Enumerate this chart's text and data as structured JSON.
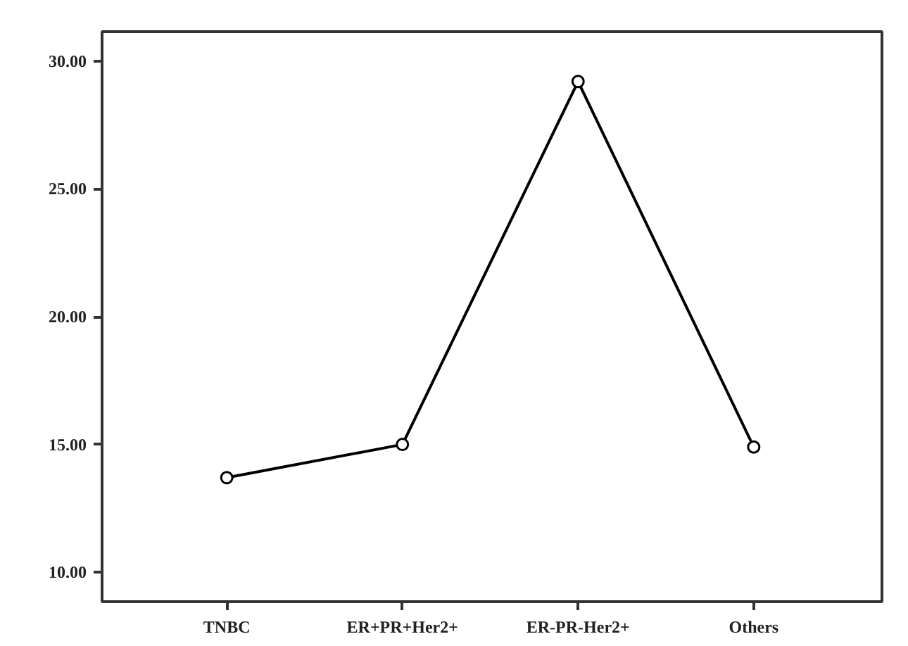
{
  "chart_data": {
    "type": "line",
    "categories": [
      "TNBC",
      "ER+PR+Her2+",
      "ER-PR-Her2+",
      "Others"
    ],
    "series": [
      {
        "color": "#000000",
        "values": [
          13.7,
          15.0,
          29.2,
          14.9
        ]
      }
    ],
    "ylim": [
      8.85,
      31.15
    ],
    "yticks": [
      {
        "value": 10,
        "label": "10.00"
      },
      {
        "value": 15,
        "label": "15.00"
      },
      {
        "value": 20,
        "label": "20.00"
      },
      {
        "value": 25,
        "label": "25.00"
      },
      {
        "value": 30,
        "label": "30.00"
      }
    ],
    "grid": false,
    "marker": "circle",
    "line_style": "solid"
  }
}
